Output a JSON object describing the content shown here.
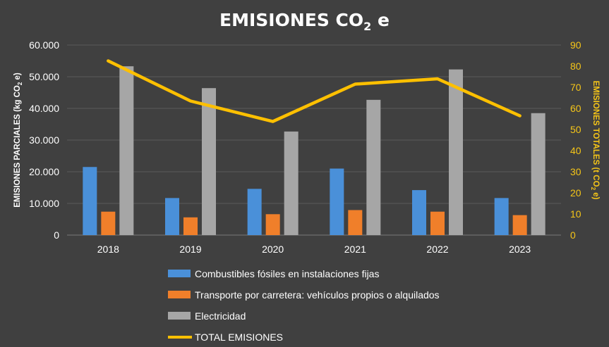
{
  "chart_data": {
    "type": "bar",
    "title": "EMISIONES CO",
    "title_subscript": "2",
    "title_suffix": " e",
    "categories": [
      "2018",
      "2019",
      "2020",
      "2021",
      "2022",
      "2023"
    ],
    "series": [
      {
        "name": "Combustibles fósiles en instalaciones fijas",
        "type": "bar",
        "axis": "left",
        "color": "#4a90d9",
        "values": [
          21500,
          11700,
          14600,
          21000,
          14200,
          11700
        ]
      },
      {
        "name": "Transporte por carretera: vehículos propios o alquilados",
        "type": "bar",
        "axis": "left",
        "color": "#f07f2a",
        "values": [
          7400,
          5600,
          6600,
          7900,
          7400,
          6300
        ]
      },
      {
        "name": "Electricidad",
        "type": "bar",
        "axis": "left",
        "color": "#a6a6a6",
        "values": [
          53300,
          46400,
          32700,
          42700,
          52300,
          38500
        ]
      },
      {
        "name": "TOTAL EMISIONES",
        "type": "line",
        "axis": "right",
        "color": "#ffc000",
        "values": [
          82.5,
          63.5,
          53.8,
          71.5,
          74,
          56.5
        ]
      }
    ],
    "y_left": {
      "label": "EMISIONES PARCIALES (kg CO",
      "label_sub": "2",
      "label_suffix": " e)",
      "lim": [
        0,
        60000
      ],
      "ticks": [
        "0",
        "10.000",
        "20.000",
        "30.000",
        "40.000",
        "50.000",
        "60.000"
      ]
    },
    "y_right": {
      "label": "EMISIONES TOTALES (t  CO",
      "label_sub": "2",
      "label_suffix": " e)",
      "lim": [
        0,
        90
      ],
      "ticks": [
        "0",
        "10",
        "20",
        "30",
        "40",
        "50",
        "60",
        "70",
        "80",
        "90"
      ]
    },
    "grid": true,
    "legend_position": "bottom",
    "colors": {
      "background": "#404040",
      "left_axis_text": "#ffffff",
      "right_axis_text": "#f5c518"
    }
  }
}
